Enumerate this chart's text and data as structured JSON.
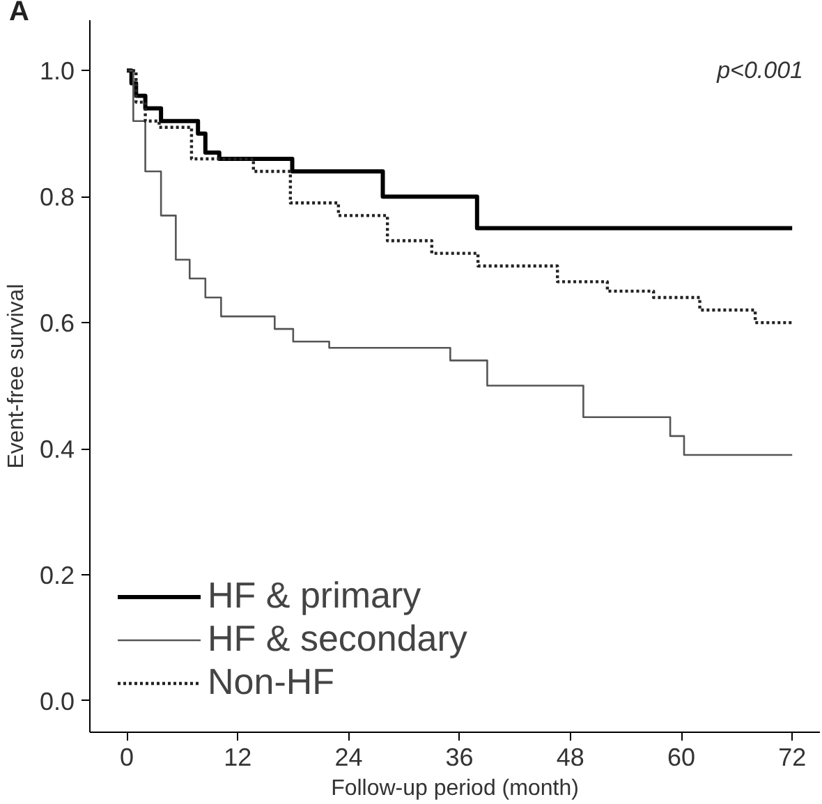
{
  "chart_data": {
    "type": "step",
    "xlabel": "Follow-up period (month)",
    "ylabel": "Event-free survival",
    "annotations": [
      "A",
      "p<0.001"
    ],
    "xlim": [
      -4,
      75
    ],
    "ylim": [
      -0.05,
      1.08
    ],
    "xticks": [
      0,
      12,
      24,
      36,
      48,
      60,
      72
    ],
    "yticks": [
      {
        "value": 0,
        "label": "0.0"
      },
      0.2,
      0.4,
      0.6,
      0.8,
      {
        "value": 1,
        "label": "1.0"
      }
    ],
    "grid": false,
    "legend": "bottom left",
    "series": [
      {
        "name": "HF & primary",
        "color": "#000000",
        "line_style": "solid",
        "x": [
          0,
          0.5,
          1,
          2,
          3.7,
          7.7,
          8.5,
          10,
          17.9,
          27.7,
          37.9,
          72
        ],
        "values": [
          1.0,
          0.98,
          0.96,
          0.94,
          0.92,
          0.9,
          0.87,
          0.86,
          0.84,
          0.8,
          0.75,
          0.75
        ]
      },
      {
        "name": "HF & secondary",
        "color": "#555555",
        "line_style": "solid",
        "x": [
          0,
          0.7,
          2,
          3.7,
          5.3,
          6.8,
          8.5,
          10.2,
          16,
          18,
          21.9,
          35,
          39,
          49.4,
          58.8,
          60.3,
          72
        ],
        "values": [
          1.0,
          0.92,
          0.84,
          0.77,
          0.7,
          0.67,
          0.64,
          0.61,
          0.59,
          0.57,
          0.56,
          0.54,
          0.5,
          0.45,
          0.42,
          0.39,
          0.39
        ]
      },
      {
        "name": "Non-HF",
        "color": "#222222",
        "line_style": "dotted",
        "x": [
          0,
          1,
          2,
          3.5,
          7,
          13.7,
          17.7,
          22.9,
          28.2,
          33,
          38,
          46.6,
          52,
          57,
          62,
          68,
          72
        ],
        "values": [
          1.0,
          0.95,
          0.92,
          0.91,
          0.86,
          0.84,
          0.79,
          0.77,
          0.73,
          0.71,
          0.69,
          0.665,
          0.65,
          0.64,
          0.62,
          0.6,
          0.6
        ]
      }
    ]
  }
}
